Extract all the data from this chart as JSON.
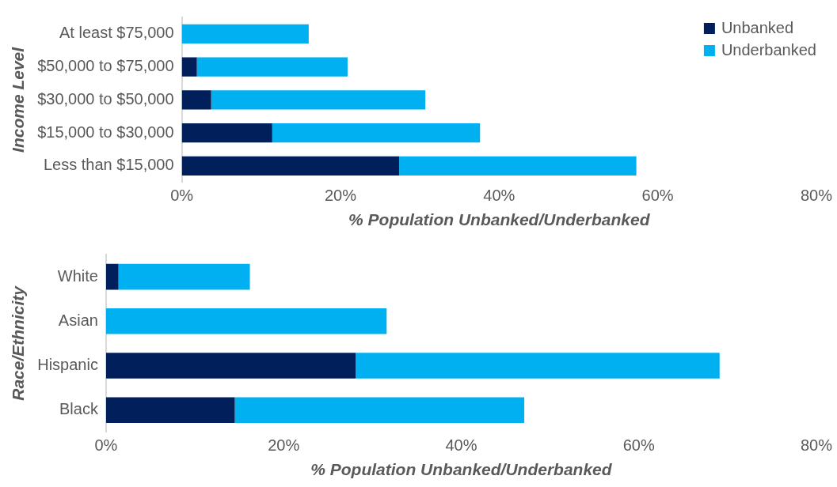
{
  "chart_data": [
    {
      "type": "bar",
      "orientation": "horizontal",
      "stacked": true,
      "ylabel": "Income Level",
      "xlabel": "% Population Unbanked/Underbanked",
      "categories": [
        "At least $75,000",
        "$50,000 to $75,000",
        "$30,000 to $50,000",
        "$15,000 to $30,000",
        "Less than $15,000"
      ],
      "series": [
        {
          "name": "Unbanked",
          "color": "#001f5b",
          "values": [
            0,
            1.9,
            3.7,
            11.4,
            27.4
          ]
        },
        {
          "name": "Underbanked",
          "color": "#00b0f0",
          "values": [
            16.0,
            19.0,
            27.0,
            26.2,
            29.9
          ]
        }
      ],
      "xlim": [
        0,
        80
      ],
      "xticks": [
        {
          "value": 0,
          "label": "0%"
        },
        {
          "value": 20,
          "label": "20%"
        },
        {
          "value": 40,
          "label": "40%"
        },
        {
          "value": 60,
          "label": "60%"
        },
        {
          "value": 80,
          "label": "80%"
        }
      ],
      "grid": false,
      "legend": "top right"
    },
    {
      "type": "bar",
      "orientation": "horizontal",
      "stacked": true,
      "ylabel": "Race/Ethnicity",
      "xlabel": "% Population Unbanked/Underbanked",
      "categories": [
        "White",
        "Asian",
        "Hispanic",
        "Black"
      ],
      "series": [
        {
          "color": "#001f5b",
          "values": [
            1.4,
            0,
            28.1,
            14.5
          ]
        },
        {
          "color": "#00b0f0",
          "values": [
            14.8,
            31.6,
            41.0,
            32.6
          ]
        }
      ],
      "xlim": [
        0,
        80
      ],
      "xticks": [
        {
          "value": 0,
          "label": "0%"
        },
        {
          "value": 20,
          "label": "20%"
        },
        {
          "value": 40,
          "label": "40%"
        },
        {
          "value": 60,
          "label": "60%"
        },
        {
          "value": 80,
          "label": "80%"
        }
      ],
      "grid": false,
      "legend": false
    }
  ]
}
